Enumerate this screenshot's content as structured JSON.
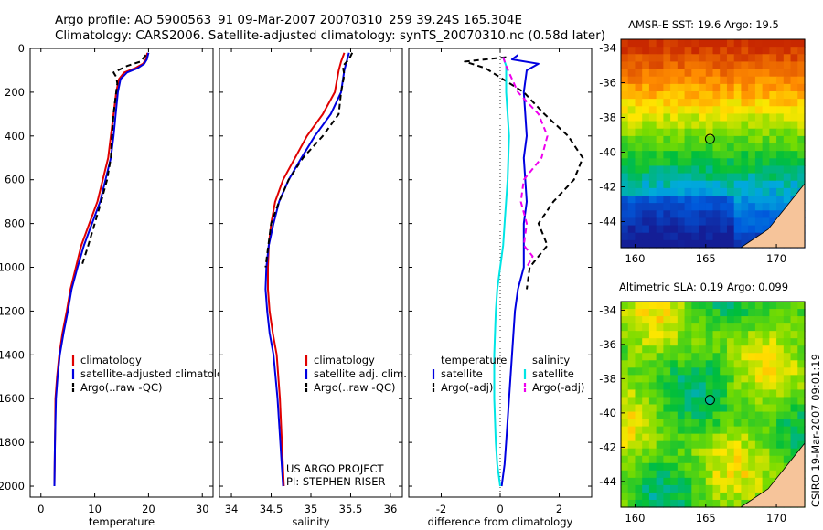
{
  "title": {
    "line1": "Argo profile: AO 5900563_91 09-Mar-2007 20070310_259 39.24S 165.304E",
    "line2": "Climatology: CARS2006. Satellite-adjusted climatology: synTS_20070310.nc (0.58d later)"
  },
  "side_note": "CSIRO 19-Mar-2007 09:01:19",
  "colors": {
    "climatology": "#e00000",
    "satellite": "#0000e0",
    "argo": "#000000",
    "salinity_satellite": "#00e5e5",
    "salinity_argo": "#ee00ee"
  },
  "chart_data": [
    {
      "type": "line",
      "xlabel": "temperature",
      "ylabel": "",
      "xlim": [
        -2,
        32
      ],
      "ylim": [
        2050,
        0
      ],
      "xticks": [
        0,
        10,
        20,
        30
      ],
      "yticks": [
        0,
        200,
        400,
        600,
        800,
        1000,
        1200,
        1400,
        1600,
        1800,
        2000
      ],
      "series": [
        {
          "name": "climatology",
          "x": [
            19.8,
            19.5,
            19.0,
            17.5,
            15.5,
            14.5,
            14.0,
            13.5,
            13.0,
            12.5,
            11.5,
            10.5,
            9.0,
            7.5,
            6.5,
            5.5,
            4.8,
            4.0,
            3.4,
            3.0,
            2.7,
            2.6,
            2.5
          ],
          "y": [
            20,
            50,
            70,
            90,
            110,
            140,
            200,
            300,
            400,
            500,
            600,
            700,
            800,
            900,
            1000,
            1100,
            1200,
            1300,
            1400,
            1500,
            1600,
            1800,
            2000
          ]
        },
        {
          "name": "satellite-adjusted climatology",
          "x": [
            20.0,
            19.7,
            19.2,
            18.0,
            16.0,
            14.8,
            14.3,
            13.9,
            13.5,
            13.0,
            12.0,
            11.0,
            9.5,
            8.0,
            6.8,
            5.7,
            5.0,
            4.2,
            3.5,
            3.1,
            2.8,
            2.6,
            2.5
          ],
          "y": [
            20,
            50,
            70,
            90,
            110,
            140,
            200,
            300,
            400,
            500,
            600,
            700,
            800,
            900,
            1000,
            1100,
            1200,
            1300,
            1400,
            1500,
            1600,
            1800,
            2000
          ]
        },
        {
          "name": "Argo(..raw -QC)",
          "x": [
            19.5,
            18.5,
            16.0,
            13.5,
            14.0,
            14.2,
            14.0,
            13.5,
            13.2,
            13.0,
            12.3,
            11.2,
            10.0,
            8.8,
            7.5
          ],
          "y": [
            30,
            60,
            80,
            110,
            130,
            160,
            200,
            300,
            400,
            500,
            600,
            700,
            800,
            900,
            1000
          ]
        }
      ]
    },
    {
      "type": "line",
      "xlabel": "salinity",
      "ylabel": "",
      "xlim": [
        33.85,
        36.15
      ],
      "ylim": [
        2050,
        0
      ],
      "xticks": [
        34,
        34.5,
        35,
        35.5,
        36
      ],
      "yticks": [
        0,
        200,
        400,
        600,
        800,
        1000,
        1200,
        1400,
        1600,
        1800,
        2000
      ],
      "series": [
        {
          "name": "climatology",
          "x": [
            35.42,
            35.38,
            35.35,
            35.3,
            35.15,
            34.95,
            34.8,
            34.65,
            34.55,
            34.5,
            34.47,
            34.46,
            34.46,
            34.48,
            34.52,
            34.57,
            34.61,
            34.66
          ],
          "y": [
            20,
            60,
            100,
            200,
            300,
            400,
            500,
            600,
            700,
            800,
            900,
            1000,
            1100,
            1200,
            1300,
            1400,
            1600,
            2000
          ]
        },
        {
          "name": "satellite adj. clim.",
          "x": [
            35.48,
            35.45,
            35.42,
            35.38,
            35.25,
            35.05,
            34.88,
            34.72,
            34.6,
            34.53,
            34.47,
            34.44,
            34.43,
            34.45,
            34.48,
            34.53,
            34.58,
            34.65
          ],
          "y": [
            20,
            60,
            100,
            200,
            300,
            400,
            500,
            600,
            700,
            800,
            900,
            1000,
            1100,
            1200,
            1300,
            1400,
            1600,
            2000
          ]
        },
        {
          "name": "Argo(..raw -QC)",
          "x": [
            35.52,
            35.48,
            35.4,
            35.42,
            35.38,
            35.35,
            35.15,
            34.9,
            34.72,
            34.6,
            34.5,
            34.43
          ],
          "y": [
            20,
            50,
            80,
            120,
            200,
            300,
            400,
            500,
            600,
            700,
            800,
            1000
          ]
        }
      ]
    },
    {
      "type": "line",
      "xlabel": "difference from climatology",
      "ylabel": "",
      "xlim": [
        -3.1,
        3.1
      ],
      "ylim": [
        2050,
        0
      ],
      "xticks": [
        -2,
        0,
        2
      ],
      "yticks": [
        0,
        200,
        400,
        600,
        800,
        1000,
        1200,
        1400,
        1600,
        1800,
        2000
      ],
      "legend_headers": [
        "temperature",
        "salinity"
      ],
      "series": [
        {
          "name": "satellite",
          "group": "temperature",
          "x": [
            0.6,
            0.4,
            1.3,
            0.9,
            0.8,
            0.9,
            0.8,
            0.9,
            0.8,
            0.8,
            0.8,
            0.6,
            0.5,
            0.4,
            0.3,
            0.2,
            0.15,
            0.05
          ],
          "y": [
            30,
            50,
            70,
            100,
            200,
            400,
            500,
            700,
            800,
            900,
            1000,
            1100,
            1200,
            1400,
            1600,
            1800,
            1900,
            2000
          ]
        },
        {
          "name": "Argo(-adj)",
          "group": "temperature",
          "x": [
            0.2,
            -1.2,
            -0.5,
            0.8,
            1.5,
            2.3,
            2.8,
            2.5,
            1.8,
            1.3,
            1.6,
            1.3,
            1.0,
            0.9
          ],
          "y": [
            40,
            60,
            90,
            200,
            300,
            400,
            500,
            600,
            700,
            800,
            900,
            950,
            1000,
            1100
          ]
        },
        {
          "name": "satellite",
          "group": "salinity",
          "x": [
            0.1,
            0.2,
            0.2,
            0.3,
            0.25,
            0.15,
            0.1,
            0.0,
            -0.1,
            -0.15,
            -0.2,
            -0.2,
            -0.15,
            -0.1,
            -0.05,
            0.0
          ],
          "y": [
            40,
            80,
            200,
            400,
            600,
            800,
            900,
            1000,
            1100,
            1200,
            1400,
            1600,
            1800,
            1900,
            1950,
            2000
          ]
        },
        {
          "name": "Argo(-adj)",
          "group": "salinity",
          "x": [
            0.1,
            0.2,
            0.6,
            1.3,
            1.6,
            1.4,
            0.8,
            0.7,
            0.9,
            0.8,
            1.1,
            0.9
          ],
          "y": [
            40,
            80,
            200,
            300,
            400,
            500,
            600,
            700,
            800,
            900,
            950,
            1000
          ]
        }
      ]
    },
    {
      "type": "heatmap",
      "title": "AMSR-E SST: 19.6 Argo: 19.5",
      "xlim": [
        159,
        172
      ],
      "ylim": [
        -45.5,
        -33.5
      ],
      "xticks": [
        160,
        165,
        170
      ],
      "yticks": [
        -34,
        -36,
        -38,
        -40,
        -42,
        -44
      ],
      "marker": {
        "lon": 165.3,
        "lat": -39.24
      }
    },
    {
      "type": "heatmap",
      "title": "Altimetric SLA: 0.19 Argo: 0.099",
      "xlim": [
        159,
        172
      ],
      "ylim": [
        -45.5,
        -33.5
      ],
      "xticks": [
        160,
        165,
        170
      ],
      "yticks": [
        -34,
        -36,
        -38,
        -40,
        -42,
        -44
      ],
      "marker": {
        "lon": 165.3,
        "lat": -39.24
      }
    }
  ],
  "legends": [
    {
      "items": [
        {
          "label": "climatology",
          "color": "#e00000",
          "style": "solid"
        },
        {
          "label": "satellite-adjusted climatology",
          "color": "#0000e0",
          "style": "solid"
        },
        {
          "label": "Argo(..raw -QC)",
          "color": "#000000",
          "style": "dashed"
        }
      ]
    },
    {
      "items": [
        {
          "label": "climatology",
          "color": "#e00000",
          "style": "solid"
        },
        {
          "label": "satellite adj. clim.",
          "color": "#0000e0",
          "style": "solid"
        },
        {
          "label": "Argo(..raw -QC)",
          "color": "#000000",
          "style": "dashed"
        }
      ]
    },
    {
      "items": [
        {
          "label": "satellite",
          "color": "#0000e0",
          "style": "solid"
        },
        {
          "label": "Argo(-adj)",
          "color": "#000000",
          "style": "dashed"
        },
        {
          "label": "satellite",
          "color": "#00e5e5",
          "style": "solid"
        },
        {
          "label": "Argo(-adj)",
          "color": "#ee00ee",
          "style": "dashed"
        }
      ]
    }
  ],
  "annotation": {
    "line1": "US ARGO PROJECT",
    "line2": "PI: STEPHEN RISER"
  }
}
